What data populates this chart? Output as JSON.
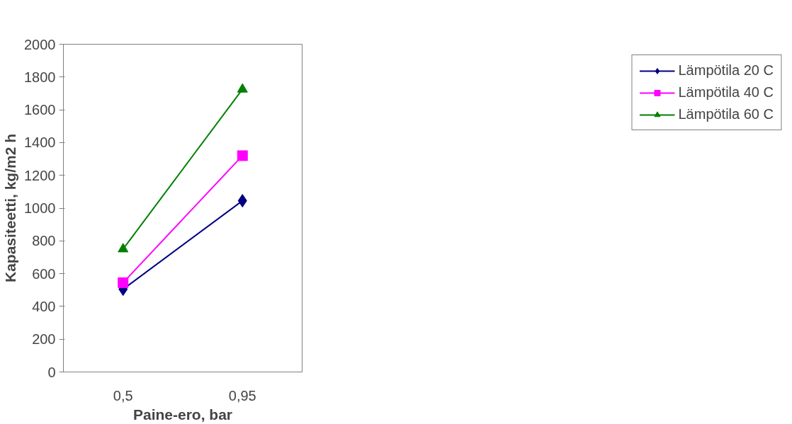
{
  "chart_data": {
    "type": "line",
    "xlabel": "Paine-ero, bar",
    "ylabel": "Kapasiteetti, kg/m2 h",
    "categories": [
      "0,5",
      "0,95"
    ],
    "series": [
      {
        "name": "Lämpötila 20 C",
        "color": "#000080",
        "marker": "diamond",
        "values": [
          505,
          1045
        ]
      },
      {
        "name": "Lämpötila 40 C",
        "color": "#ff00ff",
        "marker": "square",
        "values": [
          545,
          1320
        ]
      },
      {
        "name": "Lämpötila 60 C",
        "color": "#008000",
        "marker": "triangle",
        "values": [
          750,
          1725
        ]
      }
    ],
    "ylim": [
      0,
      2000
    ],
    "yticks": [
      0,
      200,
      400,
      600,
      800,
      1000,
      1200,
      1400,
      1600,
      1800,
      2000
    ],
    "grid": false,
    "legend": "right",
    "line_style": "solid"
  }
}
